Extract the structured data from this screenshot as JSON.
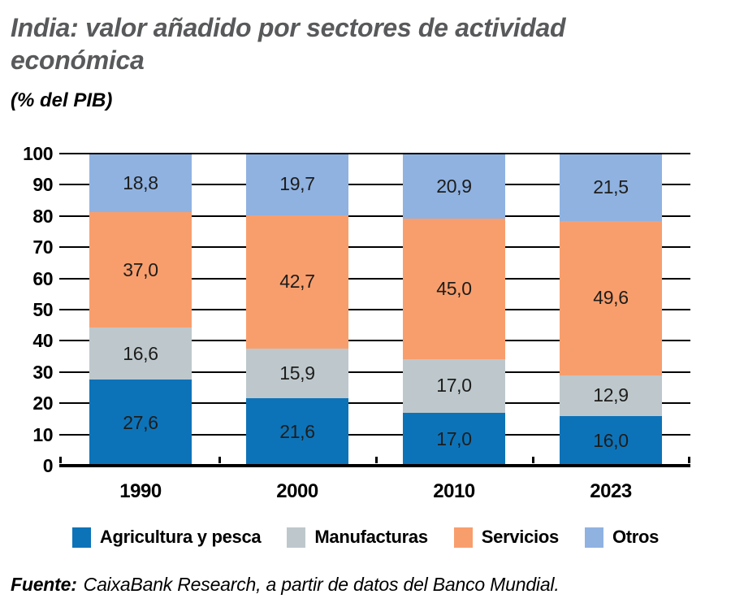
{
  "header": {
    "title": "India: valor añadido por sectores de actividad económica",
    "subtitle": "(% del PIB)"
  },
  "chart_data": {
    "type": "bar",
    "subtype": "stacked-vertical",
    "categories": [
      "1990",
      "2000",
      "2010",
      "2023"
    ],
    "series": [
      {
        "name": "Agricultura y pesca",
        "color": "#0d73b8",
        "values": [
          27.6,
          21.6,
          17.0,
          16.0
        ]
      },
      {
        "name": "Manufacturas",
        "color": "#bec8cc",
        "values": [
          16.6,
          15.9,
          17.0,
          12.9
        ]
      },
      {
        "name": "Servicios",
        "color": "#f89e6d",
        "values": [
          37.0,
          42.7,
          45.0,
          49.6
        ]
      },
      {
        "name": "Otros",
        "color": "#8fb2e1",
        "values": [
          18.8,
          19.7,
          20.9,
          21.5
        ]
      }
    ],
    "ylabel": "",
    "xlabel": "",
    "ylim": [
      0,
      100
    ],
    "yticks": [
      0,
      10,
      20,
      30,
      40,
      50,
      60,
      70,
      80,
      90,
      100
    ],
    "grid": true,
    "gridline_color": "#000000",
    "legend_position": "bottom",
    "value_labels": true,
    "value_decimal_separator": ","
  },
  "footer": {
    "source_label": "Fuente:",
    "source_text": "CaixaBank Research, a partir de datos del Banco Mundial."
  }
}
